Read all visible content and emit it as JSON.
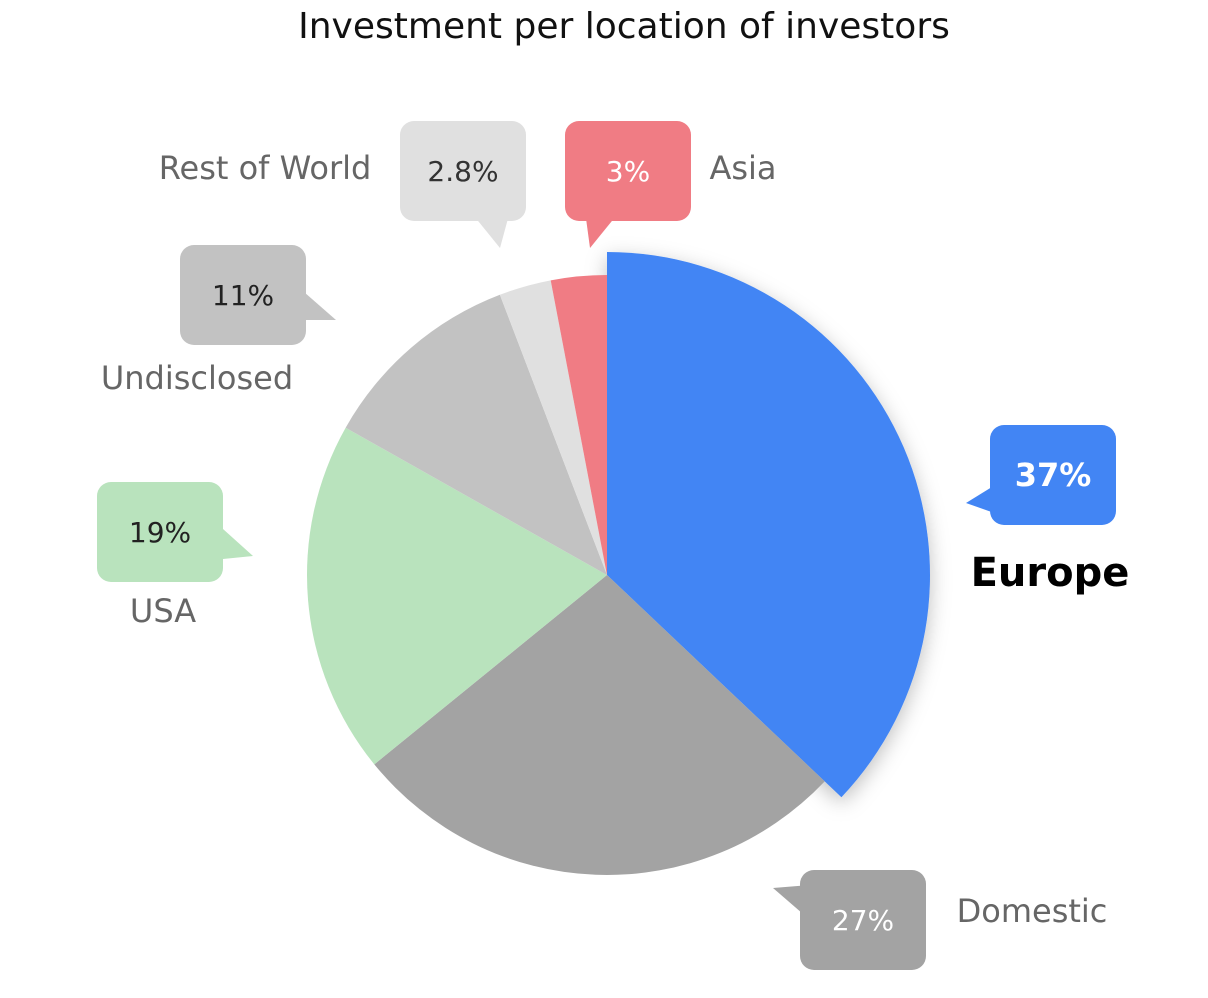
{
  "chart_data": {
    "type": "pie",
    "title": "Investment per location of investors",
    "categories": [
      "Europe",
      "Domestic",
      "USA",
      "Undisclosed",
      "Rest of World",
      "Asia"
    ],
    "values": [
      37,
      27,
      19,
      11,
      2.8,
      3
    ],
    "value_labels": [
      "37%",
      "27%",
      "19%",
      "11%",
      "2.8%",
      "3%"
    ],
    "colors": [
      "#4285f4",
      "#a3a3a3",
      "#b9e3bd",
      "#c2c2c2",
      "#e0e0e0",
      "#f07c84"
    ]
  }
}
